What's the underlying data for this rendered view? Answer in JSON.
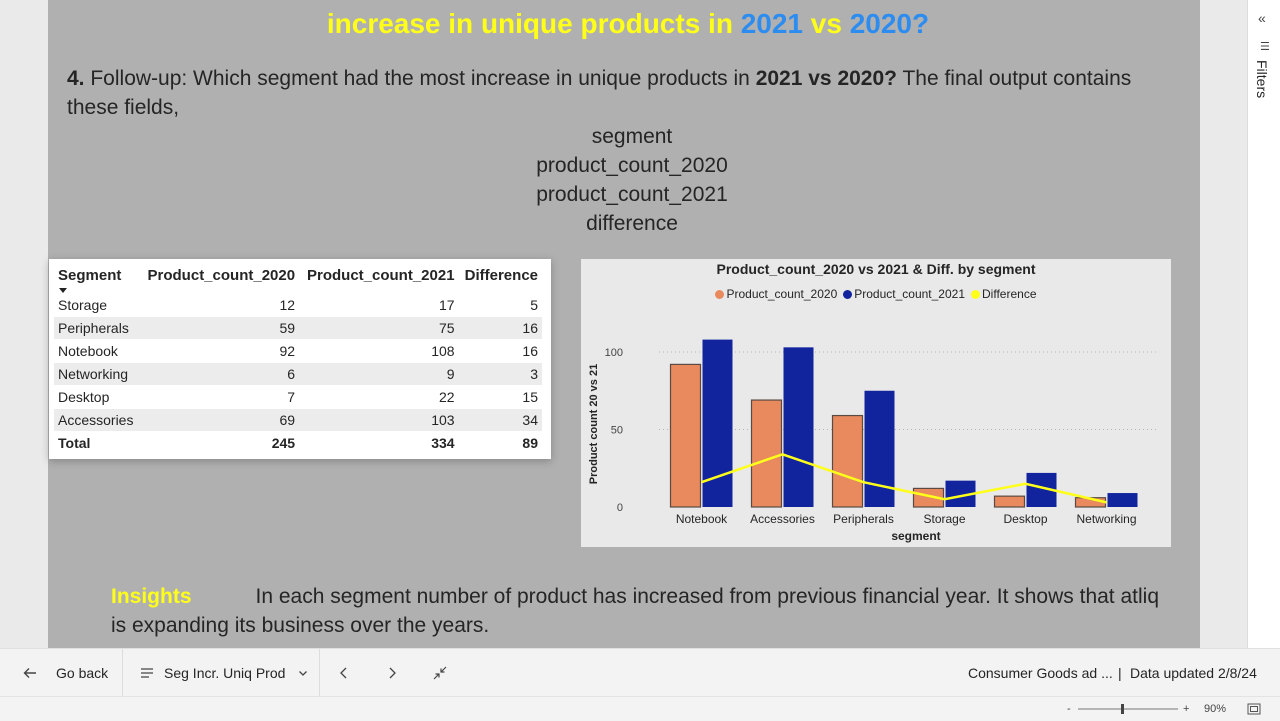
{
  "slide": {
    "title_prefix": "increase in unique products in ",
    "title_year1": "2021",
    "title_vs": " vs ",
    "title_year2": "2020?",
    "question_num": "4.",
    "question_text": " Follow-up: Which segment had the most increase in unique products in ",
    "question_bold": "2021 vs 2020?",
    "question_tail": " The final output contains these fields,",
    "fields": [
      "segment",
      "product_count_2020",
      "product_count_2021",
      "difference"
    ],
    "insights_label": "Insights",
    "insights_text": "In each segment number of product has increased from previous financial year. It shows that atliq is expanding its business over the years."
  },
  "table": {
    "headers": [
      "Segment",
      "Product_count_2020",
      "Product_count_2021",
      "Difference"
    ],
    "rows": [
      [
        "Storage",
        "12",
        "17",
        "5"
      ],
      [
        "Peripherals",
        "59",
        "75",
        "16"
      ],
      [
        "Notebook",
        "92",
        "108",
        "16"
      ],
      [
        "Networking",
        "6",
        "9",
        "3"
      ],
      [
        "Desktop",
        "7",
        "22",
        "15"
      ],
      [
        "Accessories",
        "69",
        "103",
        "34"
      ]
    ],
    "total": [
      "Total",
      "245",
      "334",
      "89"
    ]
  },
  "chart_data": {
    "type": "bar",
    "title": "Product_count_2020 vs 2021 & Diff. by segment",
    "xlabel": "segment",
    "ylabel": "Product count 20 vs 21",
    "ylim": [
      0,
      120
    ],
    "yticks": [
      0,
      50,
      100
    ],
    "categories": [
      "Notebook",
      "Accessories",
      "Peripherals",
      "Storage",
      "Desktop",
      "Networking"
    ],
    "series": [
      {
        "name": "Product_count_2020",
        "kind": "bar",
        "color": "#e8895e",
        "values": [
          92,
          69,
          59,
          12,
          7,
          6
        ]
      },
      {
        "name": "Product_count_2021",
        "kind": "bar",
        "color": "#12239e",
        "values": [
          108,
          103,
          75,
          17,
          22,
          9
        ]
      },
      {
        "name": "Difference",
        "kind": "line",
        "color": "#ffff1a",
        "values": [
          16,
          34,
          16,
          5,
          15,
          3
        ]
      }
    ],
    "legend_position": "top-center",
    "grid": true
  },
  "bottom_bar": {
    "go_back": "Go back",
    "page_name": "Seg Incr. Uniq Prod",
    "report_name": "Consumer Goods ad ...",
    "data_updated": "Data updated 2/8/24"
  },
  "status": {
    "zoom_minus": "-",
    "zoom_plus": "+",
    "zoom_level": "90%"
  },
  "filters_pane": {
    "label": "Filters"
  },
  "colors": {
    "title_yellow": "#ffff1a",
    "title_blue": "#2d8cf0",
    "slide_bg": "#b0b0b0"
  }
}
